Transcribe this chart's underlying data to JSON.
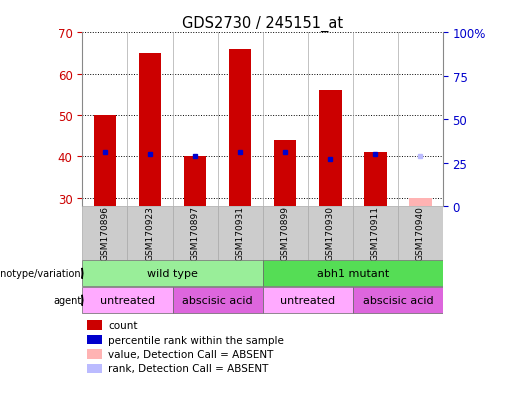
{
  "title": "GDS2730 / 245151_at",
  "samples": [
    "GSM170896",
    "GSM170923",
    "GSM170897",
    "GSM170931",
    "GSM170899",
    "GSM170930",
    "GSM170911",
    "GSM170940"
  ],
  "count_values": [
    50,
    65,
    40,
    66,
    44,
    56,
    41,
    30
  ],
  "rank_values": [
    31,
    30,
    29,
    31,
    31,
    27,
    30,
    29
  ],
  "count_absent": [
    false,
    false,
    false,
    false,
    false,
    false,
    false,
    true
  ],
  "rank_absent": [
    false,
    false,
    false,
    false,
    false,
    false,
    false,
    true
  ],
  "ylim_left": [
    28,
    70
  ],
  "yticks_left": [
    30,
    40,
    50,
    60,
    70
  ],
  "ylim_right": [
    0,
    100
  ],
  "yticks_right": [
    0,
    25,
    50,
    75,
    100
  ],
  "ytick_labels_right": [
    "0",
    "25",
    "50",
    "75",
    "100%"
  ],
  "bar_width": 0.5,
  "bar_color": "#cc0000",
  "bar_color_absent": "#ffb3b3",
  "rank_color": "#0000cc",
  "rank_color_absent": "#bbbbff",
  "plot_bg": "#ffffff",
  "label_bg_color": "#cccccc",
  "genotype_groups": [
    {
      "label": "wild type",
      "start": 0,
      "end": 3,
      "color": "#99ee99"
    },
    {
      "label": "abh1 mutant",
      "start": 4,
      "end": 7,
      "color": "#55dd55"
    }
  ],
  "agent_groups": [
    {
      "label": "untreated",
      "start": 0,
      "end": 1,
      "color": "#ffaaff"
    },
    {
      "label": "abscisic acid",
      "start": 2,
      "end": 3,
      "color": "#dd66dd"
    },
    {
      "label": "untreated",
      "start": 4,
      "end": 5,
      "color": "#ffaaff"
    },
    {
      "label": "abscisic acid",
      "start": 6,
      "end": 7,
      "color": "#dd66dd"
    }
  ],
  "legend_items": [
    {
      "label": "count",
      "color": "#cc0000"
    },
    {
      "label": "percentile rank within the sample",
      "color": "#0000cc"
    },
    {
      "label": "value, Detection Call = ABSENT",
      "color": "#ffb3b3"
    },
    {
      "label": "rank, Detection Call = ABSENT",
      "color": "#bbbbff"
    }
  ],
  "left_label_color": "#cc0000",
  "right_label_color": "#0000cc",
  "fig_width": 5.15,
  "fig_height": 4.14,
  "fig_dpi": 100
}
